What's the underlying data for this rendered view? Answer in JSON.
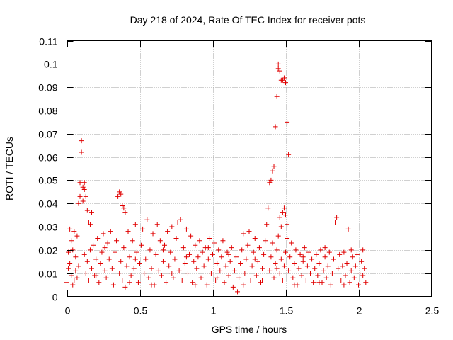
{
  "chart_data": {
    "type": "scatter",
    "title": "Day 218 of 2024, Rate Of TEC Index for receiver pots",
    "xlabel": "GPS time / hours",
    "ylabel": "ROTI / TECUs",
    "xlim": [
      0,
      2.5
    ],
    "ylim": [
      0,
      0.11
    ],
    "xticks": [
      0,
      0.5,
      1,
      1.5,
      2,
      2.5
    ],
    "xtick_labels": [
      "0",
      "0.5",
      "1",
      "1.5",
      "2",
      "2.5"
    ],
    "yticks": [
      0,
      0.01,
      0.02,
      0.03,
      0.04,
      0.05,
      0.06,
      0.07,
      0.08,
      0.09,
      0.1,
      0.11
    ],
    "ytick_labels": [
      "0",
      "0.01",
      "0.02",
      "0.03",
      "0.04",
      "0.05",
      "0.06",
      "0.07",
      "0.08",
      "0.09",
      "0.1",
      "0.11"
    ],
    "grid": true,
    "marker": "+",
    "color": "#e00000",
    "series": [
      {
        "name": "ROTI",
        "points": [
          [
            0.0,
            0.006
          ],
          [
            0.01,
            0.012
          ],
          [
            0.01,
            0.019
          ],
          [
            0.02,
            0.029
          ],
          [
            0.02,
            0.014
          ],
          [
            0.03,
            0.009
          ],
          [
            0.03,
            0.024
          ],
          [
            0.04,
            0.02
          ],
          [
            0.04,
            0.005
          ],
          [
            0.05,
            0.028
          ],
          [
            0.06,
            0.011
          ],
          [
            0.06,
            0.017
          ],
          [
            0.07,
            0.008
          ],
          [
            0.07,
            0.026
          ],
          [
            0.08,
            0.013
          ],
          [
            0.08,
            0.04
          ],
          [
            0.09,
            0.049
          ],
          [
            0.09,
            0.043
          ],
          [
            0.1,
            0.062
          ],
          [
            0.1,
            0.067
          ],
          [
            0.11,
            0.041
          ],
          [
            0.11,
            0.047
          ],
          [
            0.12,
            0.049
          ],
          [
            0.12,
            0.046
          ],
          [
            0.13,
            0.043
          ],
          [
            0.14,
            0.037
          ],
          [
            0.15,
            0.032
          ],
          [
            0.16,
            0.031
          ],
          [
            0.17,
            0.036
          ],
          [
            0.13,
            0.01
          ],
          [
            0.14,
            0.015
          ],
          [
            0.15,
            0.007
          ],
          [
            0.16,
            0.02
          ],
          [
            0.17,
            0.012
          ],
          [
            0.18,
            0.022
          ],
          [
            0.19,
            0.009
          ],
          [
            0.2,
            0.016
          ],
          [
            0.21,
            0.025
          ],
          [
            0.22,
            0.006
          ],
          [
            0.23,
            0.014
          ],
          [
            0.24,
            0.019
          ],
          [
            0.25,
            0.027
          ],
          [
            0.26,
            0.011
          ],
          [
            0.27,
            0.008
          ],
          [
            0.28,
            0.023
          ],
          [
            0.29,
            0.016
          ],
          [
            0.3,
            0.028
          ],
          [
            0.31,
            0.012
          ],
          [
            0.32,
            0.005
          ],
          [
            0.33,
            0.019
          ],
          [
            0.34,
            0.024
          ],
          [
            0.35,
            0.043
          ],
          [
            0.36,
            0.045
          ],
          [
            0.37,
            0.044
          ],
          [
            0.38,
            0.039
          ],
          [
            0.39,
            0.038
          ],
          [
            0.4,
            0.036
          ],
          [
            0.36,
            0.01
          ],
          [
            0.37,
            0.015
          ],
          [
            0.38,
            0.007
          ],
          [
            0.39,
            0.021
          ],
          [
            0.4,
            0.004
          ],
          [
            0.41,
            0.013
          ],
          [
            0.42,
            0.028
          ],
          [
            0.43,
            0.017
          ],
          [
            0.44,
            0.009
          ],
          [
            0.45,
            0.024
          ],
          [
            0.46,
            0.012
          ],
          [
            0.47,
            0.031
          ],
          [
            0.48,
            0.019
          ],
          [
            0.49,
            0.006
          ],
          [
            0.5,
            0.014
          ],
          [
            0.51,
            0.022
          ],
          [
            0.52,
            0.029
          ],
          [
            0.53,
            0.01
          ],
          [
            0.54,
            0.016
          ],
          [
            0.55,
            0.033
          ],
          [
            0.56,
            0.008
          ],
          [
            0.57,
            0.02
          ],
          [
            0.58,
            0.012
          ],
          [
            0.59,
            0.027
          ],
          [
            0.6,
            0.005
          ],
          [
            0.61,
            0.018
          ],
          [
            0.62,
            0.031
          ],
          [
            0.63,
            0.011
          ],
          [
            0.64,
            0.024
          ],
          [
            0.65,
            0.009
          ],
          [
            0.66,
            0.015
          ],
          [
            0.67,
            0.022
          ],
          [
            0.68,
            0.006
          ],
          [
            0.69,
            0.028
          ],
          [
            0.7,
            0.013
          ],
          [
            0.71,
            0.019
          ],
          [
            0.72,
            0.03
          ],
          [
            0.73,
            0.008
          ],
          [
            0.74,
            0.016
          ],
          [
            0.75,
            0.025
          ],
          [
            0.76,
            0.032
          ],
          [
            0.77,
            0.011
          ],
          [
            0.78,
            0.033
          ],
          [
            0.79,
            0.007
          ],
          [
            0.8,
            0.021
          ],
          [
            0.81,
            0.014
          ],
          [
            0.82,
            0.029
          ],
          [
            0.83,
            0.01
          ],
          [
            0.84,
            0.018
          ],
          [
            0.85,
            0.026
          ],
          [
            0.86,
            0.006
          ],
          [
            0.87,
            0.015
          ],
          [
            0.88,
            0.022
          ],
          [
            0.89,
            0.012
          ],
          [
            0.9,
            0.017
          ],
          [
            0.91,
            0.024
          ],
          [
            0.92,
            0.008
          ],
          [
            0.93,
            0.019
          ],
          [
            0.94,
            0.013
          ],
          [
            0.95,
            0.021
          ],
          [
            0.96,
            0.005
          ],
          [
            0.97,
            0.016
          ],
          [
            0.98,
            0.025
          ],
          [
            0.99,
            0.01
          ],
          [
            1.0,
            0.018
          ],
          [
            1.01,
            0.023
          ],
          [
            1.02,
            0.007
          ],
          [
            1.03,
            0.014
          ],
          [
            1.04,
            0.02
          ],
          [
            1.05,
            0.011
          ],
          [
            1.06,
            0.017
          ],
          [
            1.07,
            0.024
          ],
          [
            1.08,
            0.006
          ],
          [
            1.09,
            0.013
          ],
          [
            1.1,
            0.019
          ],
          [
            1.11,
            0.009
          ],
          [
            1.12,
            0.015
          ],
          [
            1.13,
            0.021
          ],
          [
            1.14,
            0.004
          ],
          [
            1.15,
            0.011
          ],
          [
            1.16,
            0.017
          ],
          [
            1.17,
            0.002
          ],
          [
            1.18,
            0.008
          ],
          [
            1.19,
            0.014
          ],
          [
            1.2,
            0.02
          ],
          [
            1.21,
            0.027
          ],
          [
            1.22,
            0.01
          ],
          [
            1.23,
            0.016
          ],
          [
            1.24,
            0.022
          ],
          [
            1.25,
            0.028
          ],
          [
            1.26,
            0.007
          ],
          [
            1.27,
            0.013
          ],
          [
            1.28,
            0.019
          ],
          [
            1.29,
            0.025
          ],
          [
            1.3,
            0.009
          ],
          [
            1.31,
            0.015
          ],
          [
            1.32,
            0.021
          ],
          [
            1.33,
            0.006
          ],
          [
            1.34,
            0.012
          ],
          [
            1.35,
            0.018
          ],
          [
            1.36,
            0.024
          ],
          [
            1.37,
            0.031
          ],
          [
            1.38,
            0.038
          ],
          [
            1.39,
            0.049
          ],
          [
            1.4,
            0.05
          ],
          [
            1.41,
            0.054
          ],
          [
            1.42,
            0.056
          ],
          [
            1.43,
            0.073
          ],
          [
            1.44,
            0.086
          ],
          [
            1.45,
            0.098
          ],
          [
            1.45,
            0.1
          ],
          [
            1.46,
            0.097
          ],
          [
            1.47,
            0.093
          ],
          [
            1.48,
            0.093
          ],
          [
            1.49,
            0.094
          ],
          [
            1.5,
            0.092
          ],
          [
            1.51,
            0.075
          ],
          [
            1.52,
            0.061
          ],
          [
            1.46,
            0.034
          ],
          [
            1.47,
            0.03
          ],
          [
            1.48,
            0.036
          ],
          [
            1.49,
            0.038
          ],
          [
            1.5,
            0.035
          ],
          [
            1.51,
            0.031
          ],
          [
            1.39,
            0.011
          ],
          [
            1.4,
            0.017
          ],
          [
            1.41,
            0.023
          ],
          [
            1.42,
            0.008
          ],
          [
            1.43,
            0.014
          ],
          [
            1.44,
            0.02
          ],
          [
            1.45,
            0.026
          ],
          [
            1.46,
            0.01
          ],
          [
            1.47,
            0.016
          ],
          [
            1.48,
            0.007
          ],
          [
            1.49,
            0.013
          ],
          [
            1.5,
            0.019
          ],
          [
            1.51,
            0.025
          ],
          [
            1.52,
            0.011
          ],
          [
            1.53,
            0.017
          ],
          [
            1.54,
            0.023
          ],
          [
            1.55,
            0.008
          ],
          [
            1.56,
            0.014
          ],
          [
            1.57,
            0.02
          ],
          [
            1.58,
            0.005
          ],
          [
            1.59,
            0.012
          ],
          [
            1.6,
            0.018
          ],
          [
            1.61,
            0.009
          ],
          [
            1.62,
            0.015
          ],
          [
            1.63,
            0.021
          ],
          [
            1.64,
            0.007
          ],
          [
            1.65,
            0.013
          ],
          [
            1.66,
            0.019
          ],
          [
            1.67,
            0.01
          ],
          [
            1.68,
            0.016
          ],
          [
            1.69,
            0.006
          ],
          [
            1.7,
            0.012
          ],
          [
            1.71,
            0.018
          ],
          [
            1.72,
            0.009
          ],
          [
            1.73,
            0.014
          ],
          [
            1.74,
            0.02
          ],
          [
            1.75,
            0.006
          ],
          [
            1.76,
            0.011
          ],
          [
            1.77,
            0.017
          ],
          [
            1.78,
            0.008
          ],
          [
            1.79,
            0.013
          ],
          [
            1.8,
            0.019
          ],
          [
            1.81,
            0.005
          ],
          [
            1.82,
            0.01
          ],
          [
            1.83,
            0.016
          ],
          [
            1.84,
            0.032
          ],
          [
            1.85,
            0.034
          ],
          [
            1.86,
            0.012
          ],
          [
            1.87,
            0.018
          ],
          [
            1.88,
            0.007
          ],
          [
            1.89,
            0.013
          ],
          [
            1.9,
            0.019
          ],
          [
            1.91,
            0.009
          ],
          [
            1.92,
            0.014
          ],
          [
            1.93,
            0.029
          ],
          [
            1.94,
            0.006
          ],
          [
            1.95,
            0.011
          ],
          [
            1.96,
            0.017
          ],
          [
            1.97,
            0.008
          ],
          [
            1.98,
            0.013
          ],
          [
            1.99,
            0.018
          ],
          [
            2.0,
            0.005
          ],
          [
            2.01,
            0.01
          ],
          [
            2.02,
            0.015
          ],
          [
            2.03,
            0.02
          ],
          [
            2.04,
            0.012
          ],
          [
            2.05,
            0.006
          ],
          [
            0.05,
            0.007
          ],
          [
            0.2,
            0.009
          ],
          [
            0.43,
            0.006
          ],
          [
            0.58,
            0.005
          ],
          [
            0.72,
            0.01
          ],
          [
            0.88,
            0.005
          ],
          [
            1.03,
            0.008
          ],
          [
            1.21,
            0.005
          ],
          [
            1.34,
            0.007
          ],
          [
            1.56,
            0.005
          ],
          [
            1.73,
            0.006
          ],
          [
            1.9,
            0.005
          ],
          [
            0.12,
            0.018
          ],
          [
            0.26,
            0.021
          ],
          [
            0.47,
            0.016
          ],
          [
            0.66,
            0.02
          ],
          [
            0.82,
            0.017
          ],
          [
            0.97,
            0.021
          ],
          [
            1.11,
            0.018
          ],
          [
            1.29,
            0.016
          ],
          [
            1.44,
            0.012
          ],
          [
            1.62,
            0.017
          ],
          [
            1.77,
            0.021
          ],
          [
            1.95,
            0.02
          ],
          [
            2.03,
            0.009
          ]
        ]
      }
    ]
  }
}
